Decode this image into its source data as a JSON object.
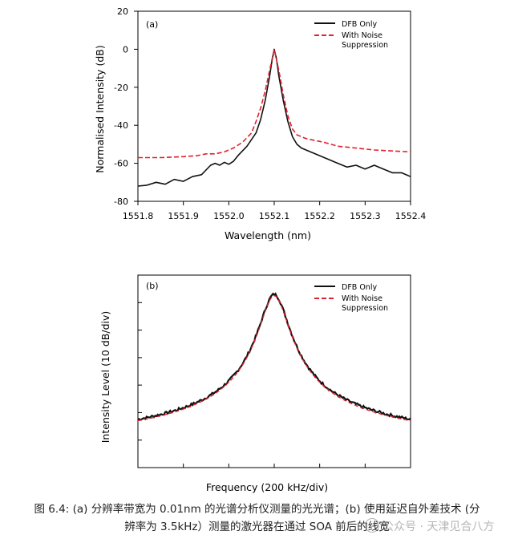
{
  "chart_data": [
    {
      "type": "line",
      "panel_label": "(a)",
      "xlabel": "Wavelength (nm)",
      "ylabel": "Normalised Intensity (dB)",
      "xlim": [
        1551.8,
        1552.4
      ],
      "ylim": [
        -80,
        20
      ],
      "x_ticks": [
        "1551.8",
        "1551.9",
        "1552.0",
        "1552.1",
        "1552.2",
        "1552.3",
        "1552.4"
      ],
      "y_ticks": [
        "20",
        "0",
        "-20",
        "-40",
        "-60",
        "-80"
      ],
      "legend_position": "top-right",
      "series": [
        {
          "name": "DFB Only",
          "color": "#111111",
          "style": "solid",
          "points": [
            [
              1551.8,
              -72
            ],
            [
              1551.82,
              -71.5
            ],
            [
              1551.84,
              -70
            ],
            [
              1551.86,
              -71
            ],
            [
              1551.88,
              -68.5
            ],
            [
              1551.9,
              -69.5
            ],
            [
              1551.92,
              -67
            ],
            [
              1551.94,
              -66
            ],
            [
              1551.96,
              -61
            ],
            [
              1551.97,
              -60
            ],
            [
              1551.98,
              -61
            ],
            [
              1551.99,
              -59.5
            ],
            [
              1552.0,
              -60.5
            ],
            [
              1552.01,
              -59
            ],
            [
              1552.02,
              -56
            ],
            [
              1552.04,
              -51
            ],
            [
              1552.06,
              -44
            ],
            [
              1552.07,
              -37
            ],
            [
              1552.08,
              -27
            ],
            [
              1552.09,
              -14
            ],
            [
              1552.095,
              -6
            ],
            [
              1552.1,
              0
            ],
            [
              1552.105,
              -5
            ],
            [
              1552.11,
              -14
            ],
            [
              1552.12,
              -27
            ],
            [
              1552.13,
              -38
            ],
            [
              1552.14,
              -46
            ],
            [
              1552.15,
              -50
            ],
            [
              1552.16,
              -52
            ],
            [
              1552.18,
              -54
            ],
            [
              1552.2,
              -56
            ],
            [
              1552.22,
              -58
            ],
            [
              1552.24,
              -60
            ],
            [
              1552.26,
              -62
            ],
            [
              1552.28,
              -61
            ],
            [
              1552.3,
              -63
            ],
            [
              1552.32,
              -61
            ],
            [
              1552.34,
              -63
            ],
            [
              1552.36,
              -65
            ],
            [
              1552.38,
              -65
            ],
            [
              1552.4,
              -67
            ]
          ]
        },
        {
          "name": "With Noise Suppression",
          "color": "#e0212f",
          "style": "dashed",
          "points": [
            [
              1551.8,
              -57
            ],
            [
              1551.85,
              -57
            ],
            [
              1551.9,
              -56.5
            ],
            [
              1551.93,
              -56
            ],
            [
              1551.95,
              -55
            ],
            [
              1551.97,
              -55
            ],
            [
              1551.99,
              -54
            ],
            [
              1552.01,
              -52
            ],
            [
              1552.03,
              -49
            ],
            [
              1552.05,
              -44
            ],
            [
              1552.06,
              -38
            ],
            [
              1552.07,
              -31
            ],
            [
              1552.08,
              -22
            ],
            [
              1552.09,
              -11
            ],
            [
              1552.1,
              0
            ],
            [
              1552.11,
              -11
            ],
            [
              1552.12,
              -24
            ],
            [
              1552.13,
              -35
            ],
            [
              1552.14,
              -42
            ],
            [
              1552.15,
              -45
            ],
            [
              1552.17,
              -47
            ],
            [
              1552.19,
              -48
            ],
            [
              1552.21,
              -49
            ],
            [
              1552.24,
              -51
            ],
            [
              1552.28,
              -52
            ],
            [
              1552.32,
              -53
            ],
            [
              1552.36,
              -53.5
            ],
            [
              1552.4,
              -54
            ]
          ]
        }
      ]
    },
    {
      "type": "line",
      "panel_label": "(b)",
      "xlabel": "Frequency (200 kHz/div)",
      "ylabel": "Intensity Level (10 dB/div)",
      "x_divisions": 6,
      "y_divisions": 7,
      "legend_position": "top-right",
      "series": [
        {
          "name": "DFB Only",
          "color": "#111111",
          "style": "solid",
          "peak_div": 6.3,
          "floor_div": 0.3,
          "halfwidth_div": 0.33,
          "noise": 0.05
        },
        {
          "name": "With Noise Suppression",
          "color": "#e0212f",
          "style": "dashed",
          "peak_div": 6.25,
          "floor_div": 0.25,
          "halfwidth_div": 0.33,
          "noise": 0.0
        }
      ]
    }
  ],
  "caption": {
    "line1": "图 6.4: (a) 分辨率带宽为 0.01nm 的光谱分析仪测量的光光谱；(b) 使用延迟自外差技术 (分",
    "line2": "辨率为 3.5kHz）测量的激光器在通过 SOA 前后的线宽"
  },
  "watermark": "公众号 · 天津见合八方"
}
